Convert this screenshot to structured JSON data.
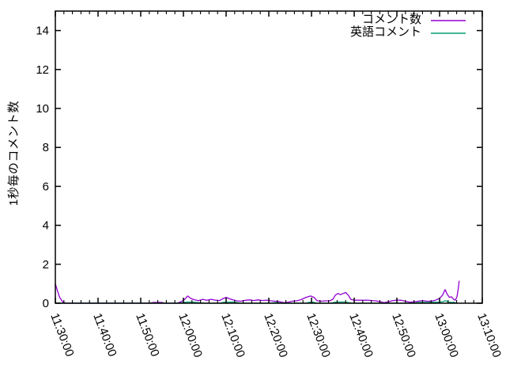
{
  "chart_data": {
    "type": "line",
    "title": "",
    "xlabel": "",
    "ylabel": "1秒毎のコメント数",
    "ylim": [
      0,
      15
    ],
    "x_range_minutes": [
      0,
      100
    ],
    "grid": false,
    "legend_position": "top-right-inside",
    "background_color": "#ffffff",
    "axis_color": "#000000",
    "y_ticks": [
      0,
      2,
      4,
      6,
      8,
      10,
      12,
      14
    ],
    "minor_tick_step_minutes": 2,
    "major_tick_step_minutes": 10,
    "x_ticks": [
      {
        "label": "11:30:00",
        "minutes": 0
      },
      {
        "label": "11:40:00",
        "minutes": 10
      },
      {
        "label": "11:50:00",
        "minutes": 20
      },
      {
        "label": "12:00:00",
        "minutes": 30
      },
      {
        "label": "12:10:00",
        "minutes": 40
      },
      {
        "label": "12:20:00",
        "minutes": 50
      },
      {
        "label": "12:30:00",
        "minutes": 60
      },
      {
        "label": "12:40:00",
        "minutes": 70
      },
      {
        "label": "12:50:00",
        "minutes": 80
      },
      {
        "label": "13:00:00",
        "minutes": 90
      },
      {
        "label": "13:10:00",
        "minutes": 100
      }
    ],
    "series": [
      {
        "name": "コメント数",
        "color": "#9400d3",
        "points_min_value": [
          [
            0,
            1.0
          ],
          [
            0.4,
            0.7
          ],
          [
            1.0,
            0.3
          ],
          [
            1.8,
            0.05
          ],
          [
            2.5,
            0
          ],
          [
            22,
            0
          ],
          [
            23,
            0.04
          ],
          [
            25,
            0.04
          ],
          [
            25.5,
            0
          ],
          [
            28.5,
            0
          ],
          [
            29.5,
            0.08
          ],
          [
            30.3,
            0.2
          ],
          [
            31,
            0.37
          ],
          [
            31.7,
            0.25
          ],
          [
            32.5,
            0.18
          ],
          [
            33.5,
            0.13
          ],
          [
            34.5,
            0.2
          ],
          [
            35.5,
            0.15
          ],
          [
            36.5,
            0.2
          ],
          [
            37.5,
            0.16
          ],
          [
            38.5,
            0.14
          ],
          [
            39.3,
            0.24
          ],
          [
            40,
            0.3
          ],
          [
            40.7,
            0.24
          ],
          [
            41.5,
            0.18
          ],
          [
            42.5,
            0.12
          ],
          [
            43.5,
            0.1
          ],
          [
            44.5,
            0.15
          ],
          [
            45.5,
            0.17
          ],
          [
            46.5,
            0.14
          ],
          [
            47.5,
            0.17
          ],
          [
            48.5,
            0.14
          ],
          [
            49.5,
            0.16
          ],
          [
            50.5,
            0.12
          ],
          [
            51.5,
            0.1
          ],
          [
            52.5,
            0.08
          ],
          [
            53.5,
            0.03
          ],
          [
            54.5,
            0.05
          ],
          [
            55.5,
            0.1
          ],
          [
            56.5,
            0.12
          ],
          [
            57.5,
            0.18
          ],
          [
            58.7,
            0.3
          ],
          [
            59.8,
            0.37
          ],
          [
            60.6,
            0.3
          ],
          [
            61.3,
            0.13
          ],
          [
            62.3,
            0.1
          ],
          [
            63.3,
            0.12
          ],
          [
            64.3,
            0.12
          ],
          [
            65,
            0.2
          ],
          [
            65.6,
            0.42
          ],
          [
            66.2,
            0.5
          ],
          [
            66.8,
            0.44
          ],
          [
            67.4,
            0.5
          ],
          [
            68,
            0.55
          ],
          [
            68.6,
            0.42
          ],
          [
            69.2,
            0.2
          ],
          [
            70,
            0.15
          ],
          [
            71,
            0.16
          ],
          [
            72,
            0.15
          ],
          [
            73,
            0.16
          ],
          [
            74,
            0.14
          ],
          [
            75,
            0.12
          ],
          [
            76,
            0.08
          ],
          [
            77,
            0.03
          ],
          [
            78,
            0.07
          ],
          [
            79,
            0.13
          ],
          [
            80,
            0.16
          ],
          [
            81,
            0.15
          ],
          [
            82,
            0.1
          ],
          [
            83,
            0.05
          ],
          [
            84,
            0.07
          ],
          [
            85,
            0.1
          ],
          [
            86,
            0.14
          ],
          [
            87,
            0.1
          ],
          [
            88,
            0.1
          ],
          [
            89,
            0.15
          ],
          [
            90,
            0.25
          ],
          [
            90.7,
            0.42
          ],
          [
            91.3,
            0.7
          ],
          [
            91.8,
            0.45
          ],
          [
            92.3,
            0.3
          ],
          [
            92.8,
            0.33
          ],
          [
            93.3,
            0.2
          ],
          [
            93.7,
            0.16
          ],
          [
            94.1,
            0.35
          ],
          [
            94.4,
            0.8
          ],
          [
            94.6,
            1.15
          ]
        ]
      },
      {
        "name": "英語コメント",
        "color": "#009e73",
        "points_min_value": [
          [
            0,
            0
          ],
          [
            29,
            0
          ],
          [
            30,
            0.04
          ],
          [
            31,
            0.06
          ],
          [
            32,
            0.06
          ],
          [
            33,
            0.04
          ],
          [
            34,
            0.02
          ],
          [
            35,
            0
          ],
          [
            38.5,
            0
          ],
          [
            39.5,
            0.05
          ],
          [
            40.5,
            0.05
          ],
          [
            41.5,
            0.06
          ],
          [
            42.5,
            0.04
          ],
          [
            43.5,
            0
          ],
          [
            50.5,
            0
          ],
          [
            51.2,
            0.03
          ],
          [
            52.2,
            0.03
          ],
          [
            53,
            0
          ],
          [
            58.8,
            0
          ],
          [
            59.5,
            0.05
          ],
          [
            60.5,
            0.05
          ],
          [
            61.2,
            0
          ],
          [
            64.5,
            0
          ],
          [
            65.5,
            0.05
          ],
          [
            66.5,
            0.06
          ],
          [
            67.5,
            0.06
          ],
          [
            68.5,
            0.04
          ],
          [
            69.5,
            0
          ],
          [
            84,
            0
          ],
          [
            85,
            0.04
          ],
          [
            86,
            0.05
          ],
          [
            87,
            0.04
          ],
          [
            88,
            0.05
          ],
          [
            89,
            0.05
          ],
          [
            90,
            0.06
          ],
          [
            90.8,
            0.08
          ],
          [
            91.4,
            0.13
          ],
          [
            92,
            0.06
          ],
          [
            92.7,
            0.04
          ],
          [
            93.4,
            0.05
          ],
          [
            94,
            0
          ]
        ]
      }
    ]
  }
}
